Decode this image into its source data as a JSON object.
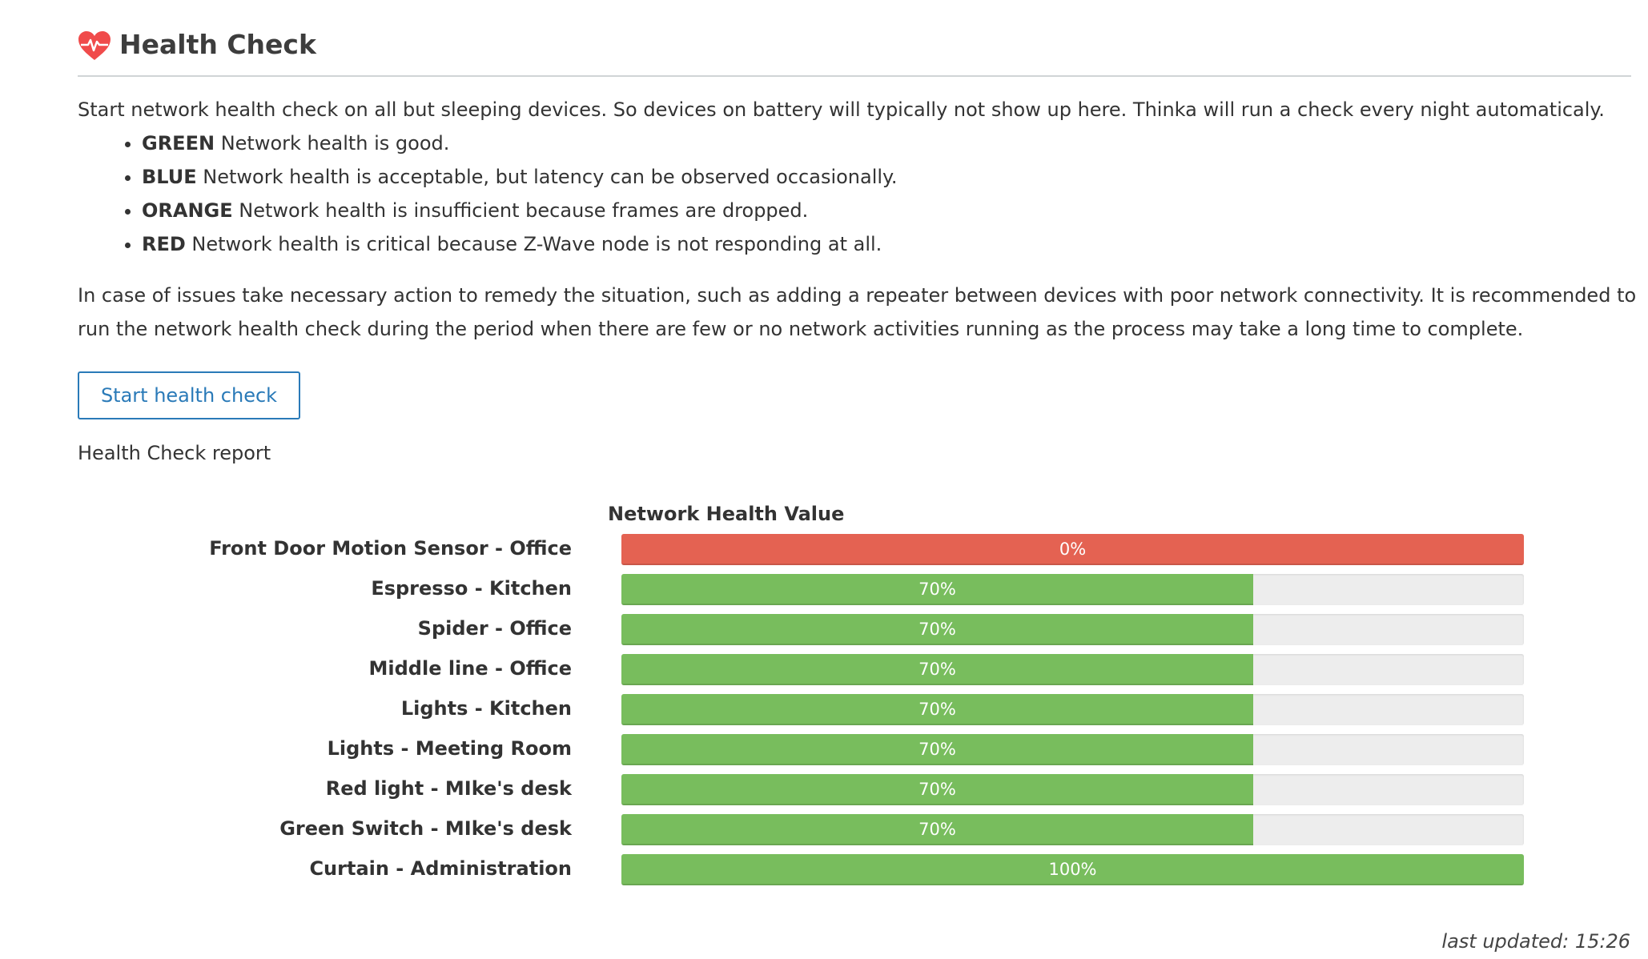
{
  "header": {
    "title": "Health Check",
    "icon": "heart-pulse-icon",
    "icon_color": "#f04b4b"
  },
  "intro": "Start network health check on all but sleeping devices. So devices on battery will typically not show up here. Thinka will run a check every night automaticaly.",
  "legend": [
    {
      "key": "GREEN",
      "text": " Network health is good."
    },
    {
      "key": "BLUE",
      "text": " Network health is acceptable, but latency can be observed occasionally."
    },
    {
      "key": "ORANGE",
      "text": " Network health is insufficient because frames are dropped."
    },
    {
      "key": "RED",
      "text": " Network health is critical because Z-Wave node is not responding at all."
    }
  ],
  "advice": "In case of issues take necessary action to remedy the situation, such as adding a repeater between devices with poor network connectivity. It is recommended to run the network health check during the period when there are few or no network activities running as the process may take a long time to complete.",
  "start_button": "Start health check",
  "report_label": "Health Check report",
  "chart_title": "Network Health Value",
  "colors": {
    "green": "#78bd5d",
    "red": "#e46252",
    "track": "#ededed",
    "accent": "#2a7ab8"
  },
  "devices": [
    {
      "name": "Front Door Motion Sensor - Office",
      "value": 0,
      "label": "0%",
      "status": "red"
    },
    {
      "name": "Espresso - Kitchen",
      "value": 70,
      "label": "70%",
      "status": "green"
    },
    {
      "name": "Spider - Office",
      "value": 70,
      "label": "70%",
      "status": "green"
    },
    {
      "name": "Middle line - Office",
      "value": 70,
      "label": "70%",
      "status": "green"
    },
    {
      "name": "Lights - Kitchen",
      "value": 70,
      "label": "70%",
      "status": "green"
    },
    {
      "name": "Lights - Meeting Room",
      "value": 70,
      "label": "70%",
      "status": "green"
    },
    {
      "name": "Red light - MIke's desk",
      "value": 70,
      "label": "70%",
      "status": "green"
    },
    {
      "name": "Green Switch - MIke's desk",
      "value": 70,
      "label": "70%",
      "status": "green"
    },
    {
      "name": "Curtain - Administration",
      "value": 100,
      "label": "100%",
      "status": "green"
    }
  ],
  "last_updated": "last updated: 15:26"
}
